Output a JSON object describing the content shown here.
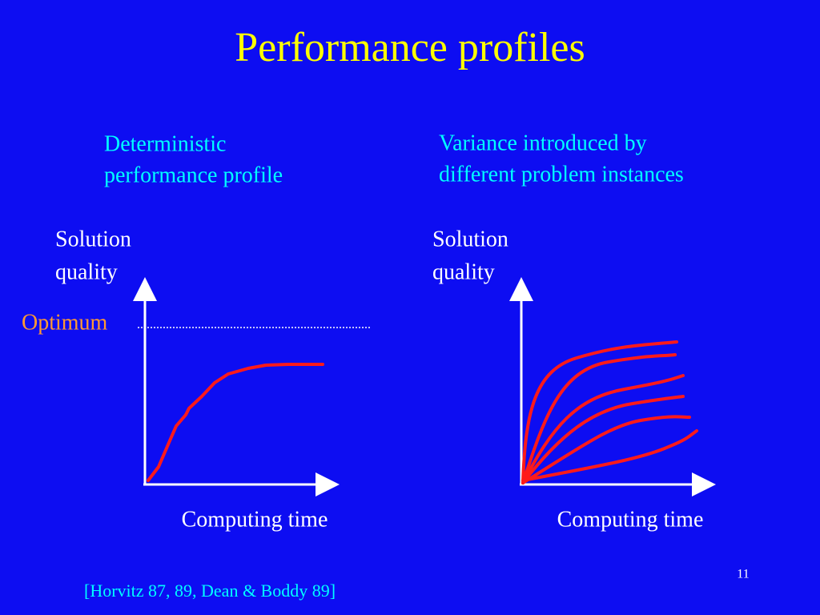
{
  "title": "Performance profiles",
  "left_panel": {
    "caption": [
      "Deterministic",
      "performance profile"
    ],
    "y_label": [
      "Solution",
      "quality"
    ],
    "optimum_label": "Optimum",
    "x_label": "Computing time"
  },
  "right_panel": {
    "caption": [
      "Variance introduced by",
      "different problem instances"
    ],
    "y_label": [
      "Solution",
      "quality"
    ],
    "x_label": "Computing time"
  },
  "citation": "[Horvitz 87, 89, Dean & Boddy 89]",
  "page_number": "11"
}
